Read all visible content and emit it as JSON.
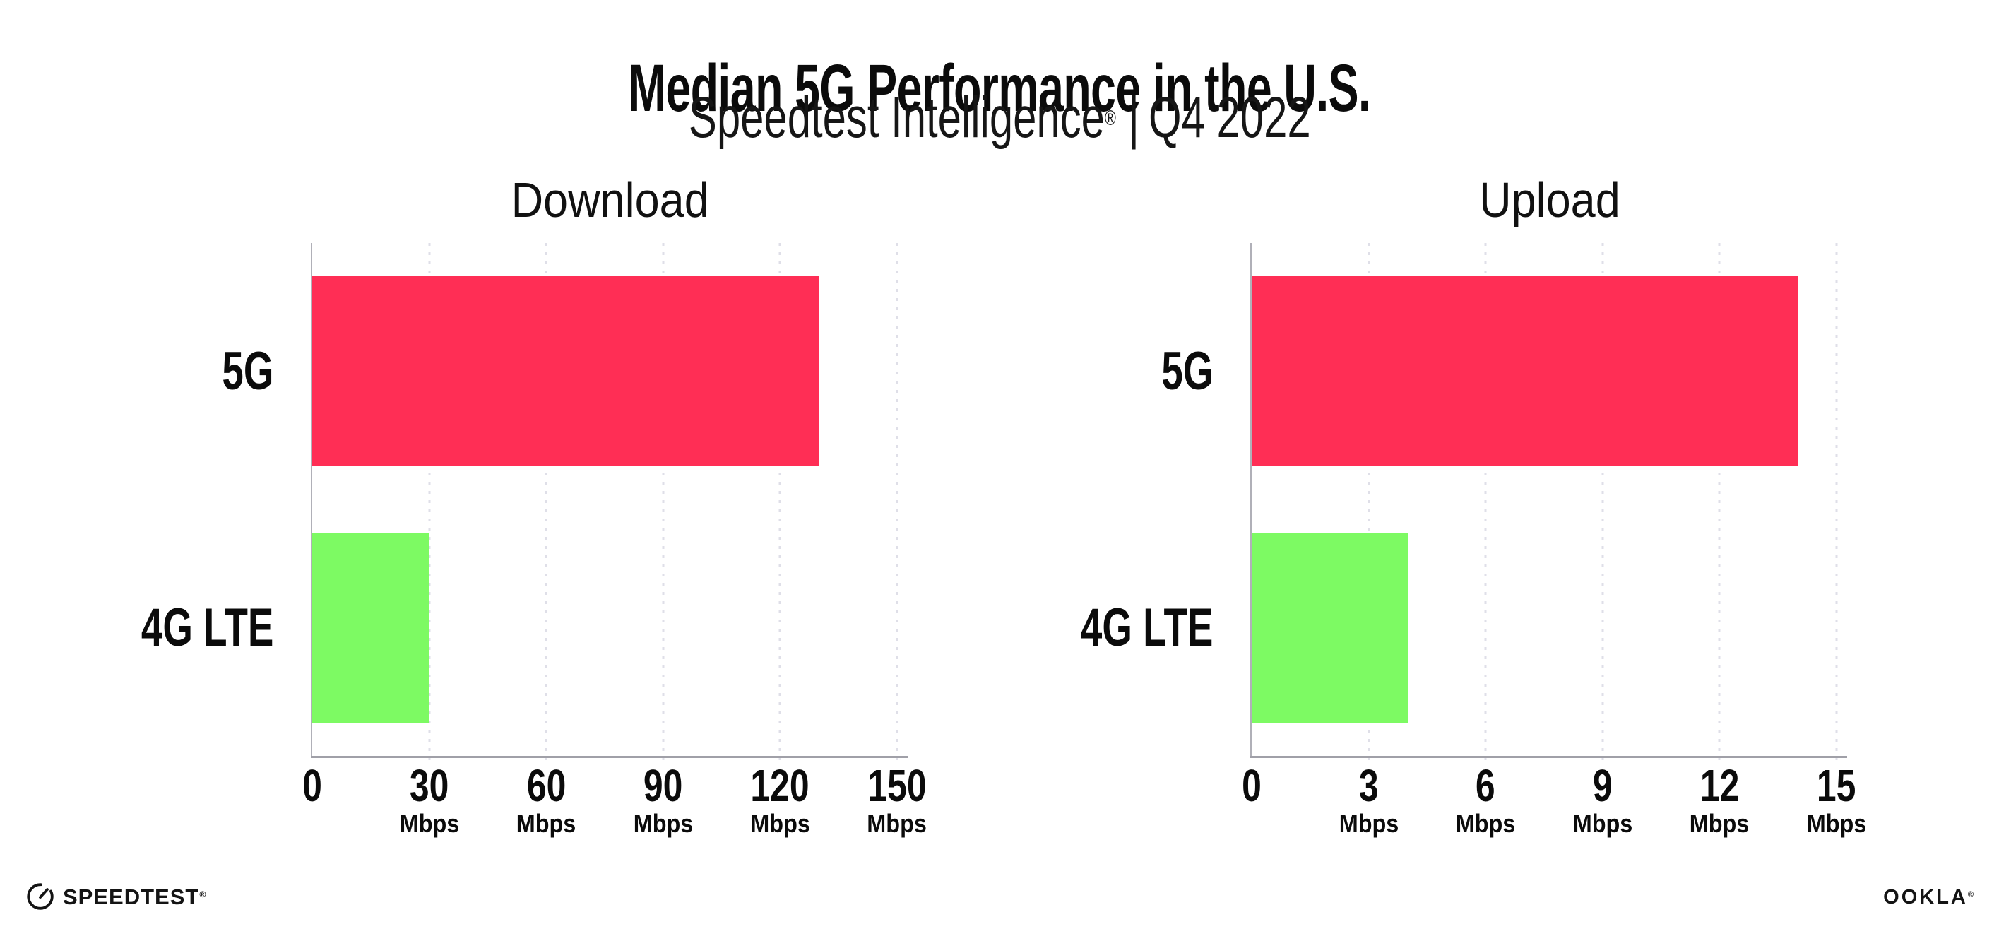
{
  "header": {
    "title": "Median 5G Performance in the U.S.",
    "subtitle": {
      "brand": "Speedtest Intelligence",
      "registered_mark": "®",
      "separator": "|",
      "period": "Q4 2022"
    }
  },
  "chart_data": [
    {
      "type": "bar",
      "orientation": "horizontal",
      "title": "Download",
      "categories": [
        "5G",
        "4G LTE"
      ],
      "values": [
        130,
        30
      ],
      "series_colors": [
        "#FF2E55",
        "#7DFA63"
      ],
      "unit": "Mbps",
      "xticks": [
        0,
        30,
        60,
        90,
        120,
        150
      ],
      "xlim": [
        0,
        150
      ],
      "xlabel": "",
      "ylabel": "",
      "grid": "vertical-dotted",
      "legend": "none"
    },
    {
      "type": "bar",
      "orientation": "horizontal",
      "title": "Upload",
      "categories": [
        "5G",
        "4G LTE"
      ],
      "values": [
        14,
        4
      ],
      "series_colors": [
        "#FF2E55",
        "#7DFA63"
      ],
      "unit": "Mbps",
      "xticks": [
        0,
        3,
        6,
        9,
        12,
        15
      ],
      "xlim": [
        0,
        15
      ],
      "xlabel": "",
      "ylabel": "",
      "grid": "vertical-dotted",
      "legend": "none"
    }
  ],
  "colors": {
    "background": "#FFFFFF",
    "text": "#0D0D0D",
    "axis": "#A5A5AD",
    "gridline": "#DFDFE8",
    "bar_5g": "#FF2E55",
    "bar_4g_lte": "#7DFA63"
  },
  "footer": {
    "speedtest": {
      "label": "SPEEDTEST",
      "registered_mark": "®"
    },
    "ookla": {
      "label": "OOKLA",
      "registered_mark": "®"
    }
  }
}
